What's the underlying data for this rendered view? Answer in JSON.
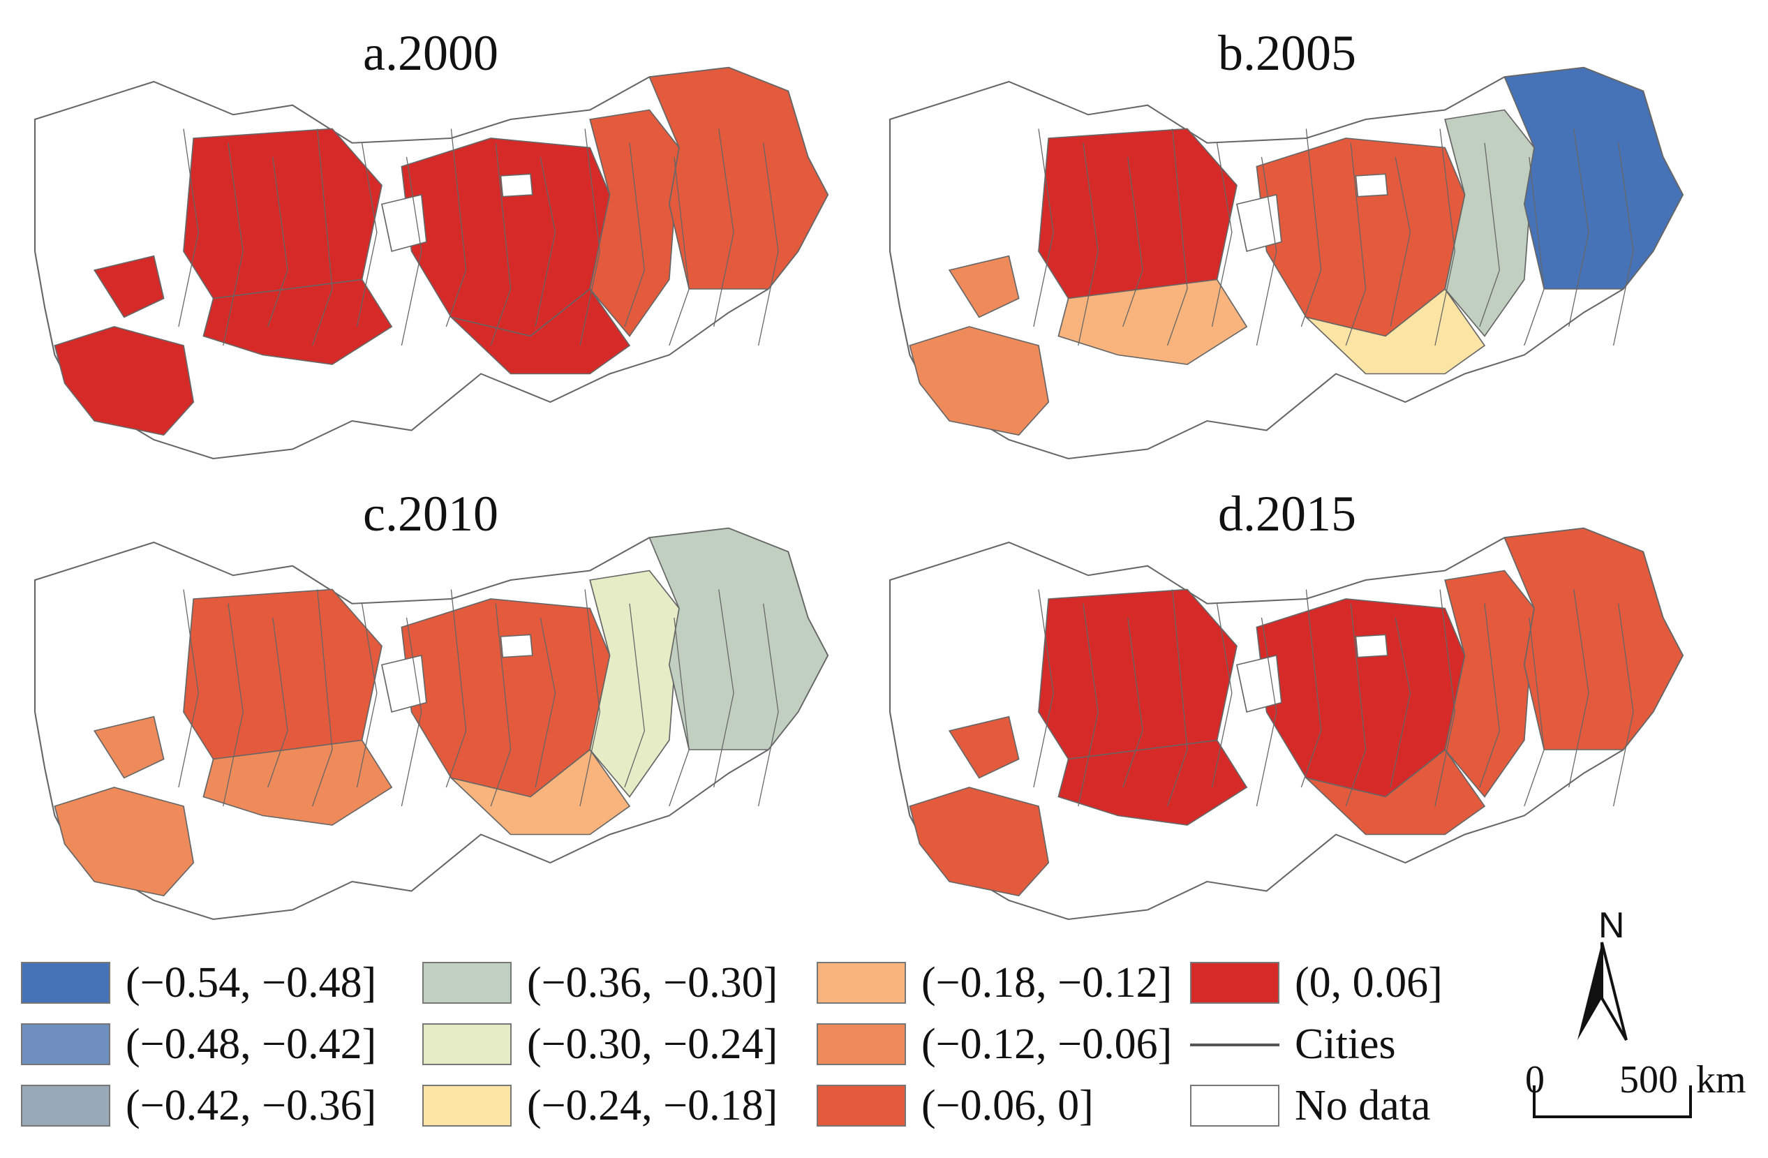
{
  "colors": {
    "c1": "#4672b8",
    "c2": "#6e8fbf",
    "c3": "#98aab8",
    "c4": "#c0cfc0",
    "c5": "#e5ecc6",
    "c6": "#fce4a4",
    "c7": "#f8b47c",
    "c8": "#ef8a5a",
    "c9": "#e35a3c",
    "c10": "#d62a28",
    "nodata": "#ffffff",
    "boundary": "#666666"
  },
  "panels": [
    {
      "id": "a",
      "title": "a.2000",
      "zones": [
        "c10",
        "c10",
        "c10",
        "c10",
        "c10",
        "c10",
        "c9",
        "c9"
      ]
    },
    {
      "id": "b",
      "title": "b.2005",
      "zones": [
        "c8",
        "c8",
        "c10",
        "c9",
        "c7",
        "c6",
        "c4",
        "c1"
      ]
    },
    {
      "id": "c",
      "title": "c.2010",
      "zones": [
        "c8",
        "c8",
        "c9",
        "c9",
        "c8",
        "c7",
        "c5",
        "c4"
      ]
    },
    {
      "id": "d",
      "title": "d.2015",
      "zones": [
        "c9",
        "c9",
        "c10",
        "c10",
        "c10",
        "c9",
        "c9",
        "c9"
      ]
    }
  ],
  "legend": [
    {
      "label": "(−0.54, −0.48]",
      "color": "c1"
    },
    {
      "label": "(−0.48, −0.42]",
      "color": "c2"
    },
    {
      "label": "(−0.42, −0.36]",
      "color": "c3"
    },
    {
      "label": "(−0.36, −0.30]",
      "color": "c4"
    },
    {
      "label": "(−0.30, −0.24]",
      "color": "c5"
    },
    {
      "label": "(−0.24, −0.18]",
      "color": "c6"
    },
    {
      "label": "(−0.18, −0.12]",
      "color": "c7"
    },
    {
      "label": "(−0.12, −0.06]",
      "color": "c8"
    },
    {
      "label": "(−0.06, 0]",
      "color": "c9"
    },
    {
      "label": "(0, 0.06]",
      "color": "c10"
    },
    {
      "label": "Cities",
      "color": "line"
    },
    {
      "label": "No data",
      "color": "nodata"
    }
  ],
  "north_label": "N",
  "scale": {
    "zero": "0",
    "value": "500",
    "unit": "km"
  }
}
